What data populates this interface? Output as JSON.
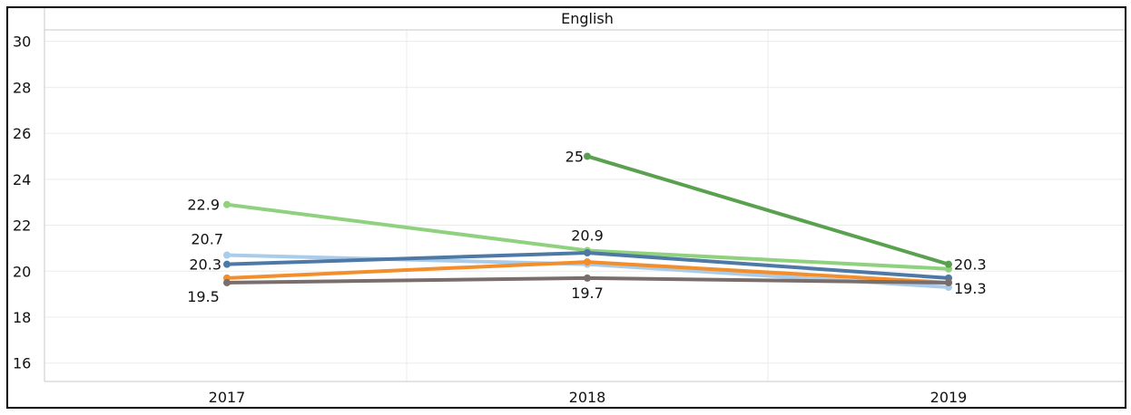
{
  "chart_data": {
    "type": "line",
    "title": "English",
    "xlabel": "",
    "ylabel": "",
    "categories": [
      "2017",
      "2018",
      "2019"
    ],
    "ylim": [
      15.2,
      30.5
    ],
    "yticks": [
      16,
      18,
      20,
      22,
      24,
      26,
      28,
      30
    ],
    "grid": true,
    "legend": "none",
    "series": [
      {
        "color": "#8fd17e",
        "values": [
          22.9,
          20.9,
          20.1
        ],
        "labels": [
          "22.9",
          "20.9",
          ""
        ]
      },
      {
        "color": "#a9ccea",
        "values": [
          20.7,
          20.3,
          19.3
        ],
        "labels": [
          "20.7",
          "",
          "19.3"
        ]
      },
      {
        "color": "#4e79a7",
        "values": [
          20.3,
          20.8,
          19.7
        ],
        "labels": [
          "20.3",
          "",
          ""
        ]
      },
      {
        "color": "#f28e2b",
        "values": [
          19.7,
          20.4,
          19.5
        ],
        "labels": [
          "",
          "",
          ""
        ]
      },
      {
        "color": "#796e6b",
        "values": [
          19.5,
          19.7,
          19.5
        ],
        "labels": [
          "19.5",
          "19.7",
          ""
        ]
      },
      {
        "color": "#59a14f",
        "values": [
          null,
          25.0,
          20.3
        ],
        "labels": [
          "",
          "25",
          "20.3"
        ]
      }
    ]
  }
}
